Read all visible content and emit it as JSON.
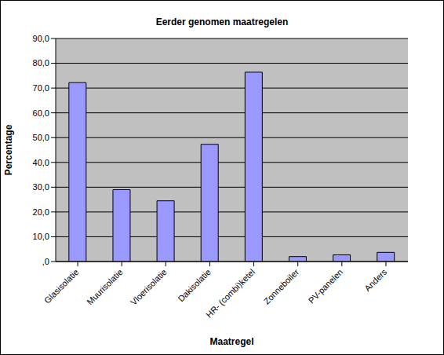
{
  "chart_data": {
    "type": "bar",
    "title": "Eerder genomen maatregelen",
    "x_label": "Maatregel",
    "y_label": "Percentage",
    "categories": [
      "Glasisolatie",
      "Muurisolatie",
      "Vloerisolatie",
      "Dakisolatie",
      "HR- (combi)ketel",
      "Zonneboiler",
      "PV-panelen",
      "Anders"
    ],
    "values": [
      72.2,
      29.0,
      24.5,
      47.3,
      76.4,
      2.0,
      2.7,
      3.7
    ],
    "color": "#9999FF",
    "ylim": [
      0,
      90
    ],
    "yticks": [
      {
        "value": 0,
        "label": ",0"
      },
      {
        "value": 10,
        "label": "10,0"
      },
      {
        "value": 20,
        "label": "20,0"
      },
      {
        "value": 30,
        "label": "30,0"
      },
      {
        "value": 40,
        "label": "40,0"
      },
      {
        "value": 50,
        "label": "50,0"
      },
      {
        "value": 60,
        "label": "60,0"
      },
      {
        "value": 70,
        "label": "70,0"
      },
      {
        "value": 80,
        "label": "80,0"
      },
      {
        "value": 90,
        "label": "90,0"
      }
    ],
    "grid": true
  }
}
